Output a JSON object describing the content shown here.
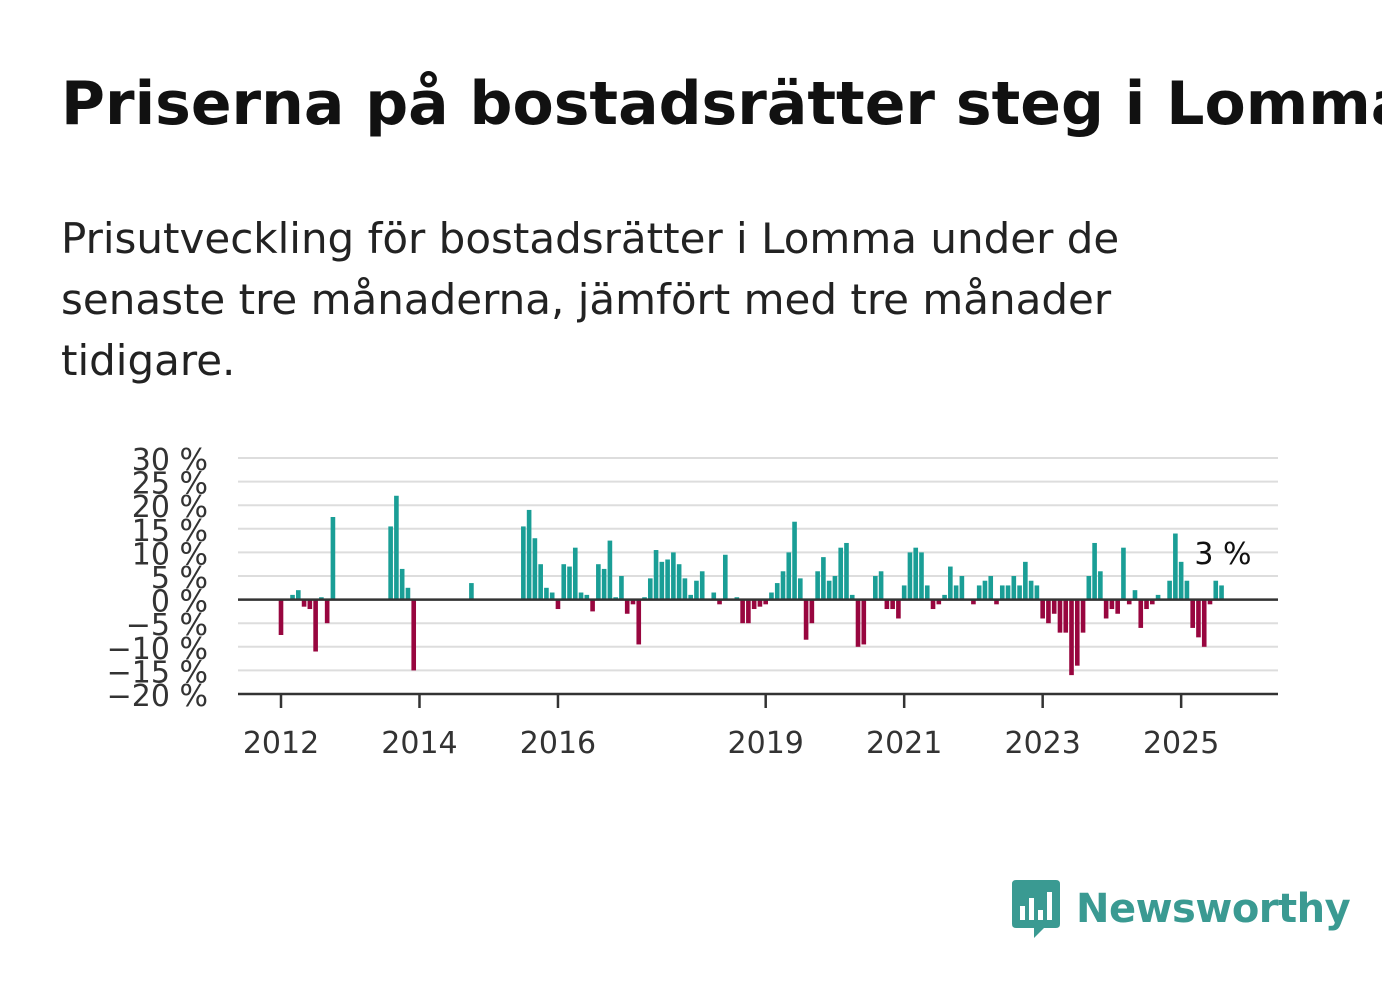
{
  "title": "Priserna på bostadsrätter steg i Lomma",
  "subtitle": "Prisutveckling för bostadsrätter i Lomma under de senaste tre månaderna, jämfört med tre månader tidigare.",
  "brand": {
    "name": "Newsworthy",
    "color": "#3a9a92"
  },
  "colors": {
    "positive": "#1a9e96",
    "negative": "#98063f",
    "grid": "#dddddd",
    "axis": "#333333"
  },
  "chart_data": {
    "type": "bar",
    "x_start": "2012-01",
    "x_end": "2025-06",
    "ylim": [
      -20,
      30
    ],
    "yticks": [
      -20,
      -15,
      -10,
      -5,
      0,
      5,
      10,
      15,
      20,
      25,
      30
    ],
    "ytick_labels": [
      "−20 %",
      "−15 %",
      "−10 %",
      "−5 %",
      "0 %",
      "5 %",
      "10 %",
      "15 %",
      "20 %",
      "25 %",
      "30 %"
    ],
    "xtick_labels": [
      "2012",
      "2014",
      "2016",
      "2019",
      "2021",
      "2023",
      "2025"
    ],
    "annotation": "3 %",
    "grid": true,
    "bars": [
      {
        "x": "2012-01",
        "y": -7.5
      },
      {
        "x": "2012-03",
        "y": 1
      },
      {
        "x": "2012-04",
        "y": 2
      },
      {
        "x": "2012-05",
        "y": -1.5
      },
      {
        "x": "2012-06",
        "y": -2
      },
      {
        "x": "2012-07",
        "y": -11
      },
      {
        "x": "2012-08",
        "y": 0.5
      },
      {
        "x": "2012-09",
        "y": -5
      },
      {
        "x": "2012-10",
        "y": 17.5
      },
      {
        "x": "2013-08",
        "y": 15.5
      },
      {
        "x": "2013-09",
        "y": 22
      },
      {
        "x": "2013-10",
        "y": 6.5
      },
      {
        "x": "2013-11",
        "y": 2.5
      },
      {
        "x": "2013-12",
        "y": -15
      },
      {
        "x": "2014-10",
        "y": 3.5
      },
      {
        "x": "2015-07",
        "y": 15.5
      },
      {
        "x": "2015-08",
        "y": 19
      },
      {
        "x": "2015-09",
        "y": 13
      },
      {
        "x": "2015-10",
        "y": 7.5
      },
      {
        "x": "2015-11",
        "y": 2.5
      },
      {
        "x": "2015-12",
        "y": 1.5
      },
      {
        "x": "2016-01",
        "y": -2
      },
      {
        "x": "2016-02",
        "y": 7.5
      },
      {
        "x": "2016-03",
        "y": 7
      },
      {
        "x": "2016-04",
        "y": 11
      },
      {
        "x": "2016-05",
        "y": 1.5
      },
      {
        "x": "2016-06",
        "y": 1
      },
      {
        "x": "2016-07",
        "y": -2.5
      },
      {
        "x": "2016-08",
        "y": 7.5
      },
      {
        "x": "2016-09",
        "y": 6.5
      },
      {
        "x": "2016-10",
        "y": 12.5
      },
      {
        "x": "2016-11",
        "y": 0.5
      },
      {
        "x": "2016-12",
        "y": 5
      },
      {
        "x": "2017-01",
        "y": -3
      },
      {
        "x": "2017-02",
        "y": -1
      },
      {
        "x": "2017-03",
        "y": -9.5
      },
      {
        "x": "2017-04",
        "y": 0.5
      },
      {
        "x": "2017-05",
        "y": 4.5
      },
      {
        "x": "2017-06",
        "y": 10.5
      },
      {
        "x": "2017-07",
        "y": 8
      },
      {
        "x": "2017-08",
        "y": 8.5
      },
      {
        "x": "2017-09",
        "y": 10
      },
      {
        "x": "2017-10",
        "y": 7.5
      },
      {
        "x": "2017-11",
        "y": 4.5
      },
      {
        "x": "2017-12",
        "y": 1
      },
      {
        "x": "2018-01",
        "y": 4
      },
      {
        "x": "2018-02",
        "y": 6
      },
      {
        "x": "2018-04",
        "y": 1.5
      },
      {
        "x": "2018-05",
        "y": -1
      },
      {
        "x": "2018-06",
        "y": 9.5
      },
      {
        "x": "2018-08",
        "y": 0.5
      },
      {
        "x": "2018-09",
        "y": -5
      },
      {
        "x": "2018-10",
        "y": -5
      },
      {
        "x": "2018-11",
        "y": -2
      },
      {
        "x": "2018-12",
        "y": -1.5
      },
      {
        "x": "2019-01",
        "y": -1
      },
      {
        "x": "2019-02",
        "y": 1.5
      },
      {
        "x": "2019-03",
        "y": 3.5
      },
      {
        "x": "2019-04",
        "y": 6
      },
      {
        "x": "2019-05",
        "y": 10
      },
      {
        "x": "2019-06",
        "y": 16.5
      },
      {
        "x": "2019-07",
        "y": 4.5
      },
      {
        "x": "2019-08",
        "y": -8.5
      },
      {
        "x": "2019-09",
        "y": -5
      },
      {
        "x": "2019-10",
        "y": 6
      },
      {
        "x": "2019-11",
        "y": 9
      },
      {
        "x": "2019-12",
        "y": 4
      },
      {
        "x": "2020-01",
        "y": 5
      },
      {
        "x": "2020-02",
        "y": 11
      },
      {
        "x": "2020-03",
        "y": 12
      },
      {
        "x": "2020-04",
        "y": 1
      },
      {
        "x": "2020-05",
        "y": -10
      },
      {
        "x": "2020-06",
        "y": -9.5
      },
      {
        "x": "2020-08",
        "y": 5
      },
      {
        "x": "2020-09",
        "y": 6
      },
      {
        "x": "2020-10",
        "y": -2
      },
      {
        "x": "2020-11",
        "y": -2
      },
      {
        "x": "2020-12",
        "y": -4
      },
      {
        "x": "2021-01",
        "y": 3
      },
      {
        "x": "2021-02",
        "y": 10
      },
      {
        "x": "2021-03",
        "y": 11
      },
      {
        "x": "2021-04",
        "y": 10
      },
      {
        "x": "2021-05",
        "y": 3
      },
      {
        "x": "2021-06",
        "y": -2
      },
      {
        "x": "2021-07",
        "y": -1
      },
      {
        "x": "2021-08",
        "y": 1
      },
      {
        "x": "2021-09",
        "y": 7
      },
      {
        "x": "2021-10",
        "y": 3
      },
      {
        "x": "2021-11",
        "y": 5
      },
      {
        "x": "2022-01",
        "y": -1
      },
      {
        "x": "2022-02",
        "y": 3
      },
      {
        "x": "2022-03",
        "y": 4
      },
      {
        "x": "2022-04",
        "y": 5
      },
      {
        "x": "2022-05",
        "y": -1
      },
      {
        "x": "2022-06",
        "y": 3
      },
      {
        "x": "2022-07",
        "y": 3
      },
      {
        "x": "2022-08",
        "y": 5
      },
      {
        "x": "2022-09",
        "y": 3
      },
      {
        "x": "2022-10",
        "y": 8
      },
      {
        "x": "2022-11",
        "y": 4
      },
      {
        "x": "2022-12",
        "y": 3
      },
      {
        "x": "2023-01",
        "y": -4
      },
      {
        "x": "2023-02",
        "y": -5
      },
      {
        "x": "2023-03",
        "y": -3
      },
      {
        "x": "2023-04",
        "y": -7
      },
      {
        "x": "2023-05",
        "y": -7
      },
      {
        "x": "2023-06",
        "y": -16
      },
      {
        "x": "2023-07",
        "y": -14
      },
      {
        "x": "2023-08",
        "y": -7
      },
      {
        "x": "2023-09",
        "y": 5
      },
      {
        "x": "2023-10",
        "y": 12
      },
      {
        "x": "2023-11",
        "y": 6
      },
      {
        "x": "2023-12",
        "y": -4
      },
      {
        "x": "2024-01",
        "y": -2
      },
      {
        "x": "2024-02",
        "y": -3
      },
      {
        "x": "2024-03",
        "y": 11
      },
      {
        "x": "2024-04",
        "y": -1
      },
      {
        "x": "2024-05",
        "y": 2
      },
      {
        "x": "2024-06",
        "y": -6
      },
      {
        "x": "2024-07",
        "y": -2
      },
      {
        "x": "2024-08",
        "y": -1
      },
      {
        "x": "2024-09",
        "y": 1
      },
      {
        "x": "2024-11",
        "y": 4
      },
      {
        "x": "2024-12",
        "y": 14
      },
      {
        "x": "2025-01",
        "y": 8
      },
      {
        "x": "2025-02",
        "y": 4
      },
      {
        "x": "2025-03",
        "y": -6
      },
      {
        "x": "2025-04",
        "y": -8
      },
      {
        "x": "2025-05",
        "y": -10
      },
      {
        "x": "2025-06",
        "y": -1
      },
      {
        "x": "2025-07",
        "y": 4
      },
      {
        "x": "2025-08",
        "y": 3
      }
    ]
  }
}
